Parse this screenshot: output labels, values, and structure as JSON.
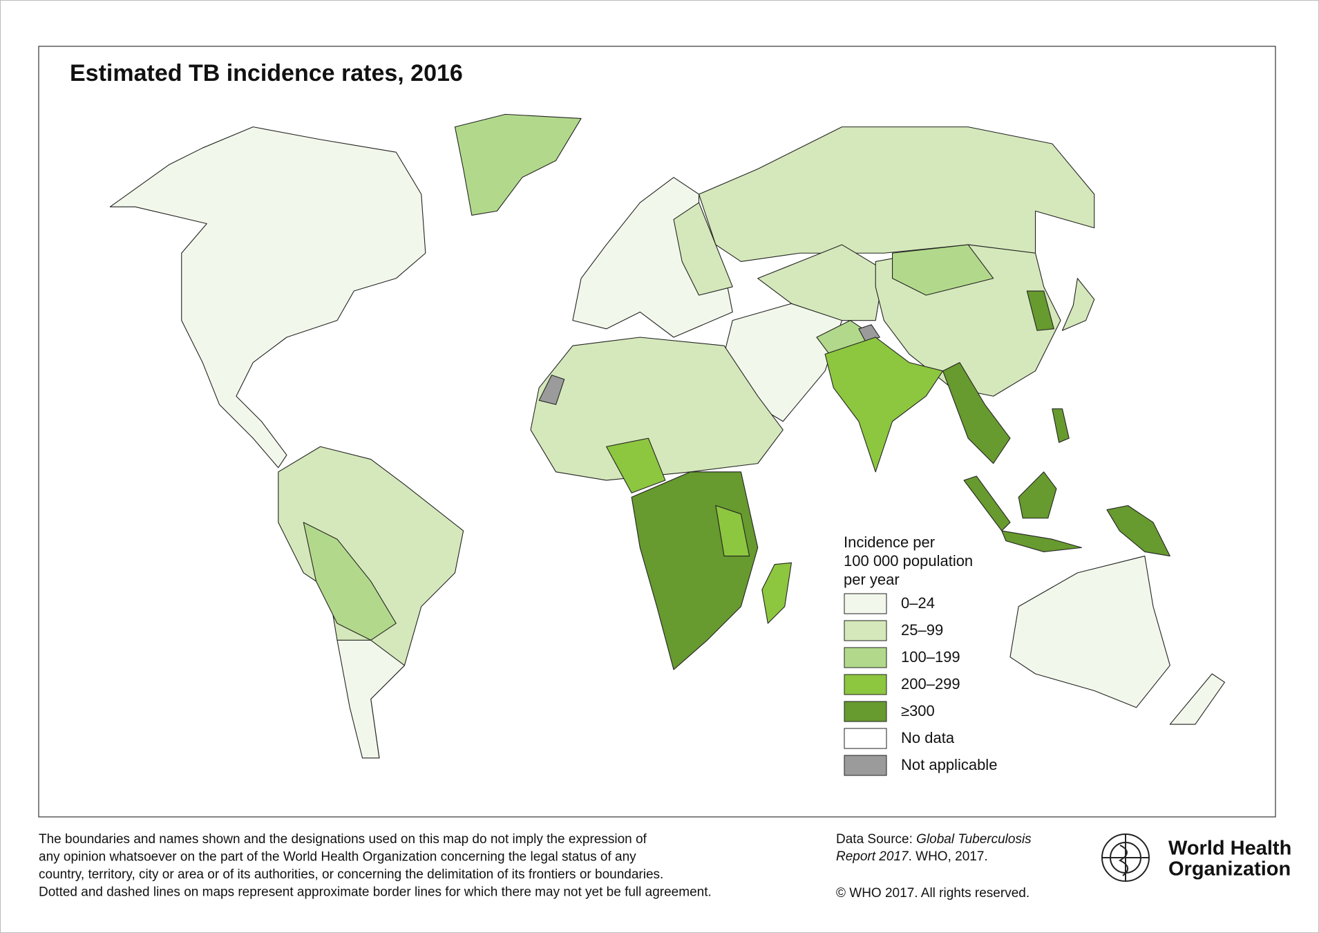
{
  "title": "Estimated TB incidence rates, 2016",
  "legend": {
    "title": [
      "Incidence per",
      "100 000 population",
      "per year"
    ],
    "items": [
      {
        "label": "0–24",
        "color": "#f1f7ea"
      },
      {
        "label": "25–99",
        "color": "#d5e8bb"
      },
      {
        "label": "100–199",
        "color": "#b2d98b"
      },
      {
        "label": "200–299",
        "color": "#8dc63f"
      },
      {
        "label": "≥300",
        "color": "#679a2f"
      },
      {
        "label": "No data",
        "color": "#ffffff"
      },
      {
        "label": "Not applicable",
        "color": "#9b9b9b"
      }
    ]
  },
  "disclaimer": [
    "The boundaries and names shown and the designations used on this map do not imply the expression of",
    "any opinion whatsoever on the part of the World Health Organization concerning the legal status of any",
    "country, territory, city or area or of its authorities, or concerning the delimitation of its frontiers or boundaries.",
    "Dotted and dashed lines on maps represent approximate border lines for which there may not yet be full agreement."
  ],
  "source": {
    "prefix": "Data Source: ",
    "line1_italic": "Global Tuberculosis",
    "line2_italic": "Report 2017",
    "line2_rest": ". WHO, 2017."
  },
  "copyright": "© WHO 2017. All rights reserved.",
  "logo": [
    "World Health",
    "Organization"
  ]
}
